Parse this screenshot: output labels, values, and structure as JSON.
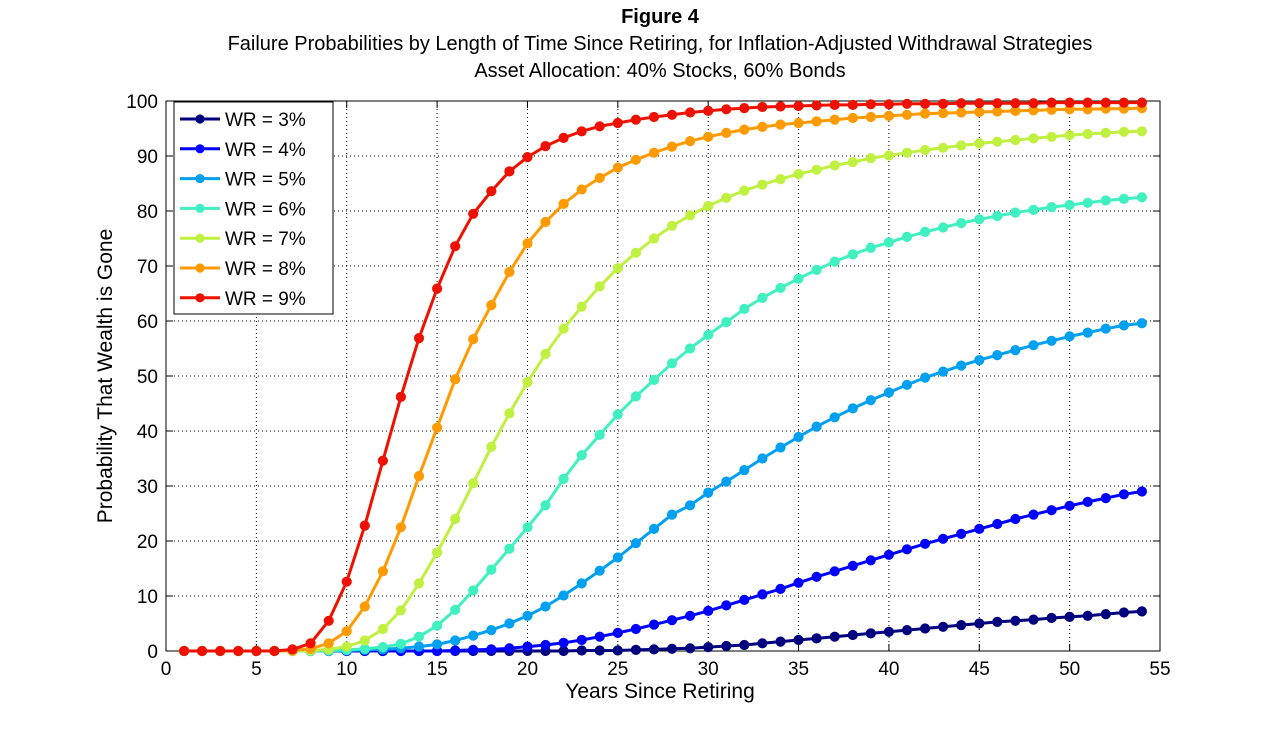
{
  "chart_data": {
    "type": "line",
    "title": "Figure 4",
    "subtitle_lines": [
      "Failure Probabilities by Length of Time Since Retiring, for Inflation-Adjusted Withdrawal Strategies",
      "Asset Allocation: 40% Stocks, 60% Bonds"
    ],
    "xlabel": "Years Since Retiring",
    "ylabel": "Probability That Wealth is Gone",
    "xlim": [
      0,
      55
    ],
    "ylim": [
      0,
      100
    ],
    "xticks": [
      "0",
      "5",
      "10",
      "15",
      "20",
      "25",
      "30",
      "35",
      "40",
      "45",
      "50",
      "55"
    ],
    "yticks": [
      "0",
      "10",
      "20",
      "30",
      "40",
      "50",
      "60",
      "70",
      "80",
      "90",
      "100"
    ],
    "grid": true,
    "legend_position": "top-left",
    "x": [
      1,
      2,
      3,
      4,
      5,
      6,
      7,
      8,
      9,
      10,
      11,
      12,
      13,
      14,
      15,
      16,
      17,
      18,
      19,
      20,
      21,
      22,
      23,
      24,
      25,
      26,
      27,
      28,
      29,
      30,
      31,
      32,
      33,
      34,
      35,
      36,
      37,
      38,
      39,
      40,
      41,
      42,
      43,
      44,
      45,
      46,
      47,
      48,
      49,
      50,
      51,
      52,
      53,
      54
    ],
    "series": [
      {
        "name": "WR = 3%",
        "color": "#00007f",
        "values": [
          0,
          0,
          0,
          0,
          0,
          0,
          0,
          0,
          0,
          0,
          0,
          0,
          0,
          0,
          0,
          0,
          0,
          0,
          0,
          0,
          0,
          0,
          0.1,
          0.1,
          0.1,
          0.2,
          0.3,
          0.4,
          0.5,
          0.7,
          0.9,
          1.1,
          1.4,
          1.7,
          2.0,
          2.3,
          2.6,
          2.9,
          3.2,
          3.5,
          3.8,
          4.1,
          4.4,
          4.7,
          5.0,
          5.3,
          5.5,
          5.7,
          6.0,
          6.2,
          6.4,
          6.7,
          7.0,
          7.2
        ]
      },
      {
        "name": "WR = 4%",
        "color": "#0000ff",
        "values": [
          0,
          0,
          0,
          0,
          0,
          0,
          0,
          0,
          0,
          0,
          0,
          0,
          0,
          0,
          0,
          0.1,
          0.2,
          0.3,
          0.5,
          0.8,
          1.1,
          1.5,
          2.0,
          2.6,
          3.3,
          4.0,
          4.8,
          5.6,
          6.4,
          7.3,
          8.3,
          9.3,
          10.3,
          11.3,
          12.4,
          13.5,
          14.5,
          15.5,
          16.5,
          17.5,
          18.5,
          19.5,
          20.4,
          21.3,
          22.2,
          23.1,
          24.0,
          24.8,
          25.6,
          26.4,
          27.1,
          27.8,
          28.5,
          29.0
        ]
      },
      {
        "name": "WR = 5%",
        "color": "#00a0f0",
        "values": [
          0,
          0,
          0,
          0,
          0,
          0,
          0,
          0,
          0,
          0.1,
          0.2,
          0.3,
          0.5,
          0.8,
          1.2,
          1.9,
          2.8,
          3.8,
          5.0,
          6.4,
          8.1,
          10.1,
          12.3,
          14.6,
          17.0,
          19.6,
          22.2,
          24.8,
          26.5,
          28.8,
          30.8,
          32.9,
          35.0,
          37.0,
          38.9,
          40.8,
          42.5,
          44.1,
          45.6,
          47.0,
          48.4,
          49.7,
          50.8,
          51.9,
          52.9,
          53.8,
          54.7,
          55.6,
          56.4,
          57.2,
          57.9,
          58.6,
          59.2,
          59.6
        ]
      },
      {
        "name": "WR = 6%",
        "color": "#40f0c0",
        "values": [
          0,
          0,
          0,
          0,
          0,
          0,
          0,
          0,
          0.1,
          0.2,
          0.4,
          0.7,
          1.3,
          2.6,
          4.6,
          7.5,
          11.0,
          14.8,
          18.6,
          22.5,
          26.5,
          31.3,
          35.6,
          39.3,
          43.0,
          46.3,
          49.3,
          52.3,
          55.0,
          57.5,
          59.8,
          62.2,
          64.2,
          66.0,
          67.7,
          69.3,
          70.8,
          72.1,
          73.3,
          74.3,
          75.3,
          76.2,
          77.0,
          77.8,
          78.5,
          79.1,
          79.7,
          80.2,
          80.7,
          81.1,
          81.5,
          81.9,
          82.2,
          82.5
        ]
      },
      {
        "name": "WR = 7%",
        "color": "#c0f040",
        "values": [
          0,
          0,
          0,
          0,
          0,
          0,
          0,
          0.1,
          0.3,
          0.8,
          1.9,
          4.0,
          7.4,
          12.3,
          17.9,
          24.0,
          30.5,
          37.1,
          43.2,
          48.9,
          54.0,
          58.6,
          62.6,
          66.3,
          69.6,
          72.4,
          75.0,
          77.3,
          79.2,
          80.9,
          82.4,
          83.7,
          84.8,
          85.8,
          86.7,
          87.5,
          88.3,
          88.9,
          89.6,
          90.1,
          90.6,
          91.1,
          91.5,
          91.9,
          92.3,
          92.6,
          92.9,
          93.2,
          93.5,
          93.8,
          94.0,
          94.2,
          94.4,
          94.5
        ]
      },
      {
        "name": "WR = 8%",
        "color": "#ff9a00",
        "values": [
          0,
          0,
          0,
          0,
          0,
          0,
          0.1,
          0.4,
          1.4,
          3.6,
          8.1,
          14.5,
          22.5,
          31.8,
          40.6,
          49.4,
          56.7,
          62.9,
          68.9,
          74.1,
          78.0,
          81.3,
          83.9,
          86.0,
          87.9,
          89.3,
          90.6,
          91.7,
          92.7,
          93.5,
          94.2,
          94.8,
          95.3,
          95.7,
          96.0,
          96.3,
          96.6,
          96.9,
          97.1,
          97.3,
          97.5,
          97.7,
          97.8,
          97.9,
          98.0,
          98.1,
          98.2,
          98.3,
          98.4,
          98.5,
          98.5,
          98.6,
          98.6,
          98.7
        ]
      },
      {
        "name": "WR = 9%",
        "color": "#ee1100",
        "values": [
          0,
          0,
          0,
          0,
          0,
          0,
          0.3,
          1.4,
          5.5,
          12.6,
          22.8,
          34.6,
          46.2,
          56.9,
          65.9,
          73.6,
          79.5,
          83.6,
          87.2,
          89.8,
          91.8,
          93.3,
          94.5,
          95.4,
          96.0,
          96.6,
          97.1,
          97.5,
          97.9,
          98.2,
          98.5,
          98.7,
          98.9,
          99.0,
          99.1,
          99.2,
          99.3,
          99.3,
          99.4,
          99.4,
          99.5,
          99.5,
          99.5,
          99.6,
          99.6,
          99.6,
          99.6,
          99.6,
          99.7,
          99.7,
          99.7,
          99.7,
          99.7,
          99.7
        ]
      }
    ]
  }
}
